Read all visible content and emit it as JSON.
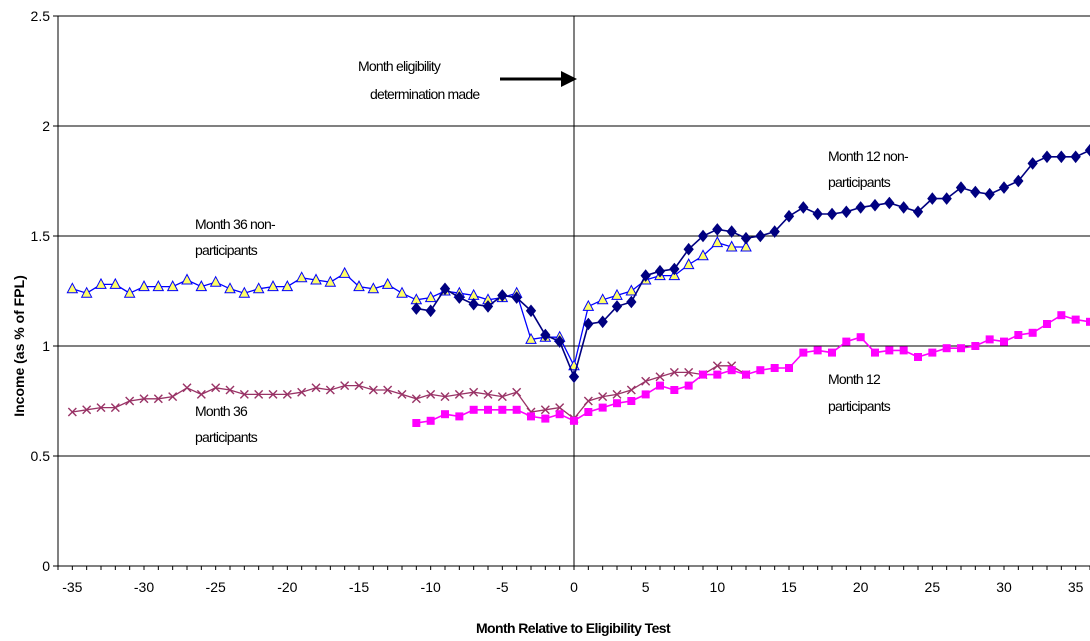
{
  "chart_data": {
    "type": "line",
    "title": "",
    "xlabel": "Month Relative to Eligibility Test",
    "ylabel": "Income (as % of FPL)",
    "xlim": [
      -36,
      36
    ],
    "ylim": [
      0,
      2.5
    ],
    "xticks": [
      -35,
      -30,
      -25,
      -20,
      -15,
      -10,
      -5,
      0,
      5,
      10,
      15,
      20,
      25,
      30,
      35
    ],
    "yticks": [
      0,
      0.5,
      1,
      1.5,
      2,
      2.5
    ],
    "ytick_labels": [
      "0",
      "0.5",
      "1",
      "1.5",
      "2",
      "2.5"
    ],
    "grid": "horizontal",
    "vertical_reference_line": 0,
    "colors": {
      "m12_nonparticipants": "#000080",
      "m36_nonparticipants": "#0000ff",
      "m36_nonparticipants_fill": "#ffff66",
      "m12_participants": "#ff00ff",
      "m36_participants": "#993366",
      "gridline": "#000000"
    },
    "annotations": {
      "eligibility_line1": "Month eligibility",
      "eligibility_line2": "determination made",
      "m12_nonpart_line1": "Month 12 non-",
      "m12_nonpart_line2": "participants",
      "m36_nonpart_line1": "Month 36 non-",
      "m36_nonpart_line2": "participants",
      "m12_part_line1": "Month 12",
      "m12_part_line2": "participants",
      "m36_part_line1": "Month 36",
      "m36_part_line2": "participants"
    },
    "series": [
      {
        "id": "m36_nonparticipants",
        "marker": "triangle",
        "x": [
          -35,
          -34,
          -33,
          -32,
          -31,
          -30,
          -29,
          -28,
          -27,
          -26,
          -25,
          -24,
          -23,
          -22,
          -21,
          -20,
          -19,
          -18,
          -17,
          -16,
          -15,
          -14,
          -13,
          -12,
          -11,
          -10,
          -9,
          -8,
          -7,
          -6,
          -5,
          -4,
          -3,
          -2,
          -1,
          0,
          1,
          2,
          3,
          4,
          5,
          6,
          7,
          8,
          9,
          10,
          11,
          12
        ],
        "values": [
          1.26,
          1.24,
          1.28,
          1.28,
          1.24,
          1.27,
          1.27,
          1.27,
          1.3,
          1.27,
          1.29,
          1.26,
          1.24,
          1.26,
          1.27,
          1.27,
          1.31,
          1.3,
          1.29,
          1.33,
          1.27,
          1.26,
          1.28,
          1.24,
          1.21,
          1.22,
          1.25,
          1.24,
          1.23,
          1.21,
          1.22,
          1.24,
          1.03,
          1.04,
          1.04,
          0.91,
          1.18,
          1.21,
          1.23,
          1.25,
          1.3,
          1.32,
          1.32,
          1.37,
          1.41,
          1.47,
          1.45,
          1.45
        ]
      },
      {
        "id": "m12_nonparticipants",
        "marker": "diamond",
        "x": [
          -11,
          -10,
          -9,
          -8,
          -7,
          -6,
          -5,
          -4,
          -3,
          -2,
          -1,
          0,
          1,
          2,
          3,
          4,
          5,
          6,
          7,
          8,
          9,
          10,
          11,
          12,
          13,
          14,
          15,
          16,
          17,
          18,
          19,
          20,
          21,
          22,
          23,
          24,
          25,
          26,
          27,
          28,
          29,
          30,
          31,
          32,
          33,
          34,
          35,
          36
        ],
        "values": [
          1.17,
          1.16,
          1.26,
          1.22,
          1.19,
          1.18,
          1.23,
          1.22,
          1.16,
          1.05,
          1.02,
          0.86,
          1.1,
          1.11,
          1.18,
          1.2,
          1.32,
          1.34,
          1.35,
          1.44,
          1.5,
          1.53,
          1.52,
          1.49,
          1.5,
          1.52,
          1.59,
          1.63,
          1.6,
          1.6,
          1.61,
          1.63,
          1.64,
          1.65,
          1.63,
          1.61,
          1.67,
          1.67,
          1.72,
          1.7,
          1.69,
          1.72,
          1.75,
          1.83,
          1.86,
          1.86,
          1.86,
          1.89
        ]
      },
      {
        "id": "m36_participants",
        "marker": "x",
        "x": [
          -35,
          -34,
          -33,
          -32,
          -31,
          -30,
          -29,
          -28,
          -27,
          -26,
          -25,
          -24,
          -23,
          -22,
          -21,
          -20,
          -19,
          -18,
          -17,
          -16,
          -15,
          -14,
          -13,
          -12,
          -11,
          -10,
          -9,
          -8,
          -7,
          -6,
          -5,
          -4,
          -3,
          -2,
          -1,
          0,
          1,
          2,
          3,
          4,
          5,
          6,
          7,
          8,
          9,
          10,
          11,
          12
        ],
        "values": [
          0.7,
          0.71,
          0.72,
          0.72,
          0.75,
          0.76,
          0.76,
          0.77,
          0.81,
          0.78,
          0.81,
          0.8,
          0.78,
          0.78,
          0.78,
          0.78,
          0.79,
          0.81,
          0.8,
          0.82,
          0.82,
          0.8,
          0.8,
          0.78,
          0.76,
          0.78,
          0.77,
          0.78,
          0.79,
          0.78,
          0.77,
          0.79,
          0.7,
          0.71,
          0.72,
          0.67,
          0.75,
          0.77,
          0.78,
          0.8,
          0.84,
          0.86,
          0.88,
          0.88,
          0.87,
          0.91,
          0.91,
          0.87
        ]
      },
      {
        "id": "m12_participants",
        "marker": "square",
        "x": [
          -11,
          -10,
          -9,
          -8,
          -7,
          -6,
          -5,
          -4,
          -3,
          -2,
          -1,
          0,
          1,
          2,
          3,
          4,
          5,
          6,
          7,
          8,
          9,
          10,
          11,
          12,
          13,
          14,
          15,
          16,
          17,
          18,
          19,
          20,
          21,
          22,
          23,
          24,
          25,
          26,
          27,
          28,
          29,
          30,
          31,
          32,
          33,
          34,
          35,
          36
        ],
        "values": [
          0.65,
          0.66,
          0.69,
          0.68,
          0.71,
          0.71,
          0.71,
          0.71,
          0.68,
          0.67,
          0.69,
          0.66,
          0.7,
          0.72,
          0.74,
          0.75,
          0.78,
          0.82,
          0.8,
          0.82,
          0.87,
          0.87,
          0.89,
          0.87,
          0.89,
          0.9,
          0.9,
          0.97,
          0.98,
          0.97,
          1.02,
          1.04,
          0.97,
          0.98,
          0.98,
          0.95,
          0.97,
          0.99,
          0.99,
          1.0,
          1.03,
          1.02,
          1.05,
          1.06,
          1.1,
          1.14,
          1.12,
          1.11
        ]
      }
    ]
  }
}
